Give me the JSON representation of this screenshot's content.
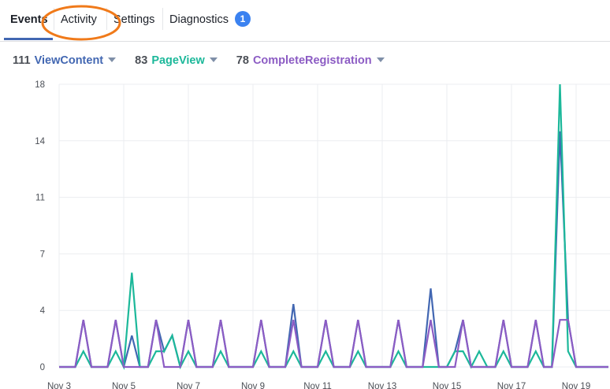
{
  "tabs": [
    {
      "label": "Events",
      "active": true
    },
    {
      "label": "Activity"
    },
    {
      "label": "Settings"
    },
    {
      "label": "Diagnostics",
      "badge": "1"
    }
  ],
  "annotation": {
    "shape": "ellipse",
    "target": "Activity",
    "color": "#f07a1a"
  },
  "legend": [
    {
      "count": "111",
      "name": "ViewContent",
      "color": "#4267b2"
    },
    {
      "count": "83",
      "name": "PageView",
      "color": "#1cb89a"
    },
    {
      "count": "78",
      "name": "CompleteRegistration",
      "color": "#8c5cc4"
    }
  ],
  "chart_data": {
    "type": "line",
    "ylim": [
      0,
      18
    ],
    "yticks": [
      {
        "value": 0,
        "label": "0"
      },
      {
        "value": 3.6,
        "label": "4"
      },
      {
        "value": 7.2,
        "label": "7"
      },
      {
        "value": 10.8,
        "label": "11"
      },
      {
        "value": 14.4,
        "label": "14"
      },
      {
        "value": 18,
        "label": "18"
      }
    ],
    "xticks": [
      "Nov 3",
      "Nov 5",
      "Nov 7",
      "Nov 9",
      "Nov 11",
      "Nov 13",
      "Nov 15",
      "Nov 17",
      "Nov 19"
    ],
    "grid": true,
    "x": [
      "Nov 3 00:00",
      "Nov 3 06:00",
      "Nov 3 12:00",
      "Nov 3 18:00",
      "Nov 4 00:00",
      "Nov 4 06:00",
      "Nov 4 12:00",
      "Nov 4 18:00",
      "Nov 5 00:00",
      "Nov 5 06:00",
      "Nov 5 12:00",
      "Nov 5 18:00",
      "Nov 6 00:00",
      "Nov 6 06:00",
      "Nov 6 12:00",
      "Nov 6 18:00",
      "Nov 7 00:00",
      "Nov 7 06:00",
      "Nov 7 12:00",
      "Nov 7 18:00",
      "Nov 8 00:00",
      "Nov 8 06:00",
      "Nov 8 12:00",
      "Nov 8 18:00",
      "Nov 9 00:00",
      "Nov 9 06:00",
      "Nov 9 12:00",
      "Nov 9 18:00",
      "Nov 10 00:00",
      "Nov 10 06:00",
      "Nov 10 12:00",
      "Nov 10 18:00",
      "Nov 11 00:00",
      "Nov 11 06:00",
      "Nov 11 12:00",
      "Nov 11 18:00",
      "Nov 12 00:00",
      "Nov 12 06:00",
      "Nov 12 12:00",
      "Nov 12 18:00",
      "Nov 13 00:00",
      "Nov 13 06:00",
      "Nov 13 12:00",
      "Nov 13 18:00",
      "Nov 14 00:00",
      "Nov 14 06:00",
      "Nov 14 12:00",
      "Nov 14 18:00",
      "Nov 15 00:00",
      "Nov 15 06:00",
      "Nov 15 12:00",
      "Nov 15 18:00",
      "Nov 16 00:00",
      "Nov 16 06:00",
      "Nov 16 12:00",
      "Nov 16 18:00",
      "Nov 17 00:00",
      "Nov 17 06:00",
      "Nov 17 12:00",
      "Nov 17 18:00",
      "Nov 18 00:00",
      "Nov 18 06:00",
      "Nov 18 12:00",
      "Nov 18 18:00",
      "Nov 19 00:00",
      "Nov 19 06:00",
      "Nov 19 12:00",
      "Nov 19 18:00",
      "Nov 20 00:00"
    ],
    "series": [
      {
        "name": "ViewContent",
        "color": "#4267b2",
        "values": [
          0,
          0,
          0,
          3,
          0,
          0,
          0,
          3,
          0,
          2,
          0,
          0,
          3,
          1,
          2,
          0,
          3,
          0,
          0,
          0,
          3,
          0,
          0,
          0,
          0,
          3,
          0,
          0,
          0,
          4,
          0,
          0,
          0,
          3,
          0,
          0,
          0,
          3,
          0,
          0,
          0,
          0,
          3,
          0,
          0,
          0,
          5,
          0,
          0,
          1,
          3,
          0,
          0,
          0,
          0,
          3,
          0,
          0,
          0,
          3,
          0,
          0,
          15,
          3,
          0,
          0,
          0,
          0,
          0
        ]
      },
      {
        "name": "PageView",
        "color": "#1cb89a",
        "values": [
          0,
          0,
          0,
          1,
          0,
          0,
          0,
          1,
          0,
          6,
          0,
          0,
          1,
          1,
          2,
          0,
          1,
          0,
          0,
          0,
          1,
          0,
          0,
          0,
          0,
          1,
          0,
          0,
          0,
          1,
          0,
          0,
          0,
          1,
          0,
          0,
          0,
          1,
          0,
          0,
          0,
          0,
          1,
          0,
          0,
          0,
          0,
          0,
          0,
          1,
          1,
          0,
          1,
          0,
          0,
          1,
          0,
          0,
          0,
          1,
          0,
          0,
          18,
          1,
          0,
          0,
          0,
          0,
          0
        ]
      },
      {
        "name": "CompleteRegistration",
        "color": "#8c5cc4",
        "values": [
          0,
          0,
          0,
          3,
          0,
          0,
          0,
          3,
          0,
          0,
          0,
          0,
          3,
          0,
          0,
          0,
          3,
          0,
          0,
          0,
          3,
          0,
          0,
          0,
          0,
          3,
          0,
          0,
          0,
          3,
          0,
          0,
          0,
          3,
          0,
          0,
          0,
          3,
          0,
          0,
          0,
          0,
          3,
          0,
          0,
          0,
          3,
          0,
          0,
          0,
          3,
          0,
          0,
          0,
          0,
          3,
          0,
          0,
          0,
          3,
          0,
          0,
          3,
          3,
          0,
          0,
          0,
          0,
          0
        ]
      }
    ]
  }
}
